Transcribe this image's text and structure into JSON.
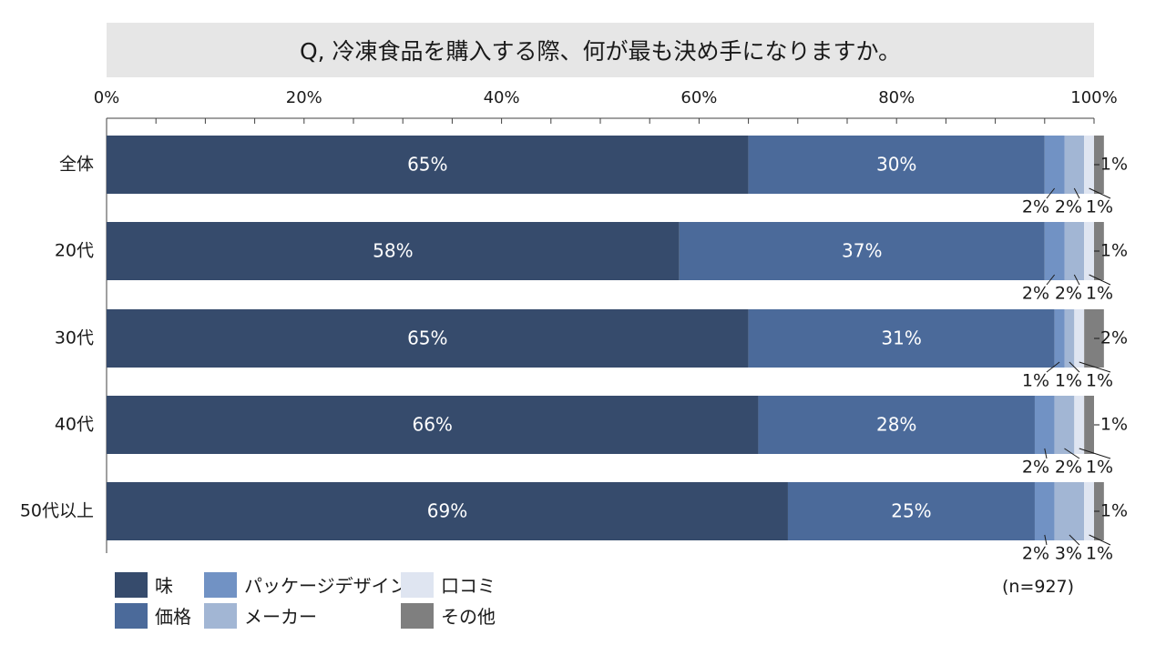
{
  "chart_data": {
    "type": "bar",
    "orientation": "horizontal-stacked-100",
    "title": "Q, 冷凍食品を購入する際、何が最も決め手になりますか。",
    "categories": [
      "全体",
      "20代",
      "30代",
      "40代",
      "50代以上"
    ],
    "xlim": [
      0,
      100
    ],
    "x_ticks": [
      "0%",
      "20%",
      "40%",
      "60%",
      "80%",
      "100%"
    ],
    "series": [
      {
        "name": "味",
        "color": "#364b6c",
        "values": [
          65,
          58,
          65,
          66,
          69
        ]
      },
      {
        "name": "価格",
        "color": "#4b6a9a",
        "values": [
          30,
          37,
          31,
          28,
          25
        ]
      },
      {
        "name": "パッケージデザイン",
        "color": "#7192c4",
        "values": [
          2,
          2,
          1,
          2,
          2
        ]
      },
      {
        "name": "メーカー",
        "color": "#a2b6d4",
        "values": [
          2,
          2,
          1,
          2,
          3
        ]
      },
      {
        "name": "口コミ",
        "color": "#dfe5f1",
        "values": [
          1,
          1,
          1,
          1,
          1
        ]
      },
      {
        "name": "その他",
        "color": "#7f7f7f",
        "values": [
          1,
          1,
          2,
          1,
          1
        ]
      }
    ],
    "legend": [
      "味",
      "パッケージデザイン",
      "口コミ",
      "価格",
      "メーカー",
      "その他"
    ],
    "note": "(n=927)"
  }
}
